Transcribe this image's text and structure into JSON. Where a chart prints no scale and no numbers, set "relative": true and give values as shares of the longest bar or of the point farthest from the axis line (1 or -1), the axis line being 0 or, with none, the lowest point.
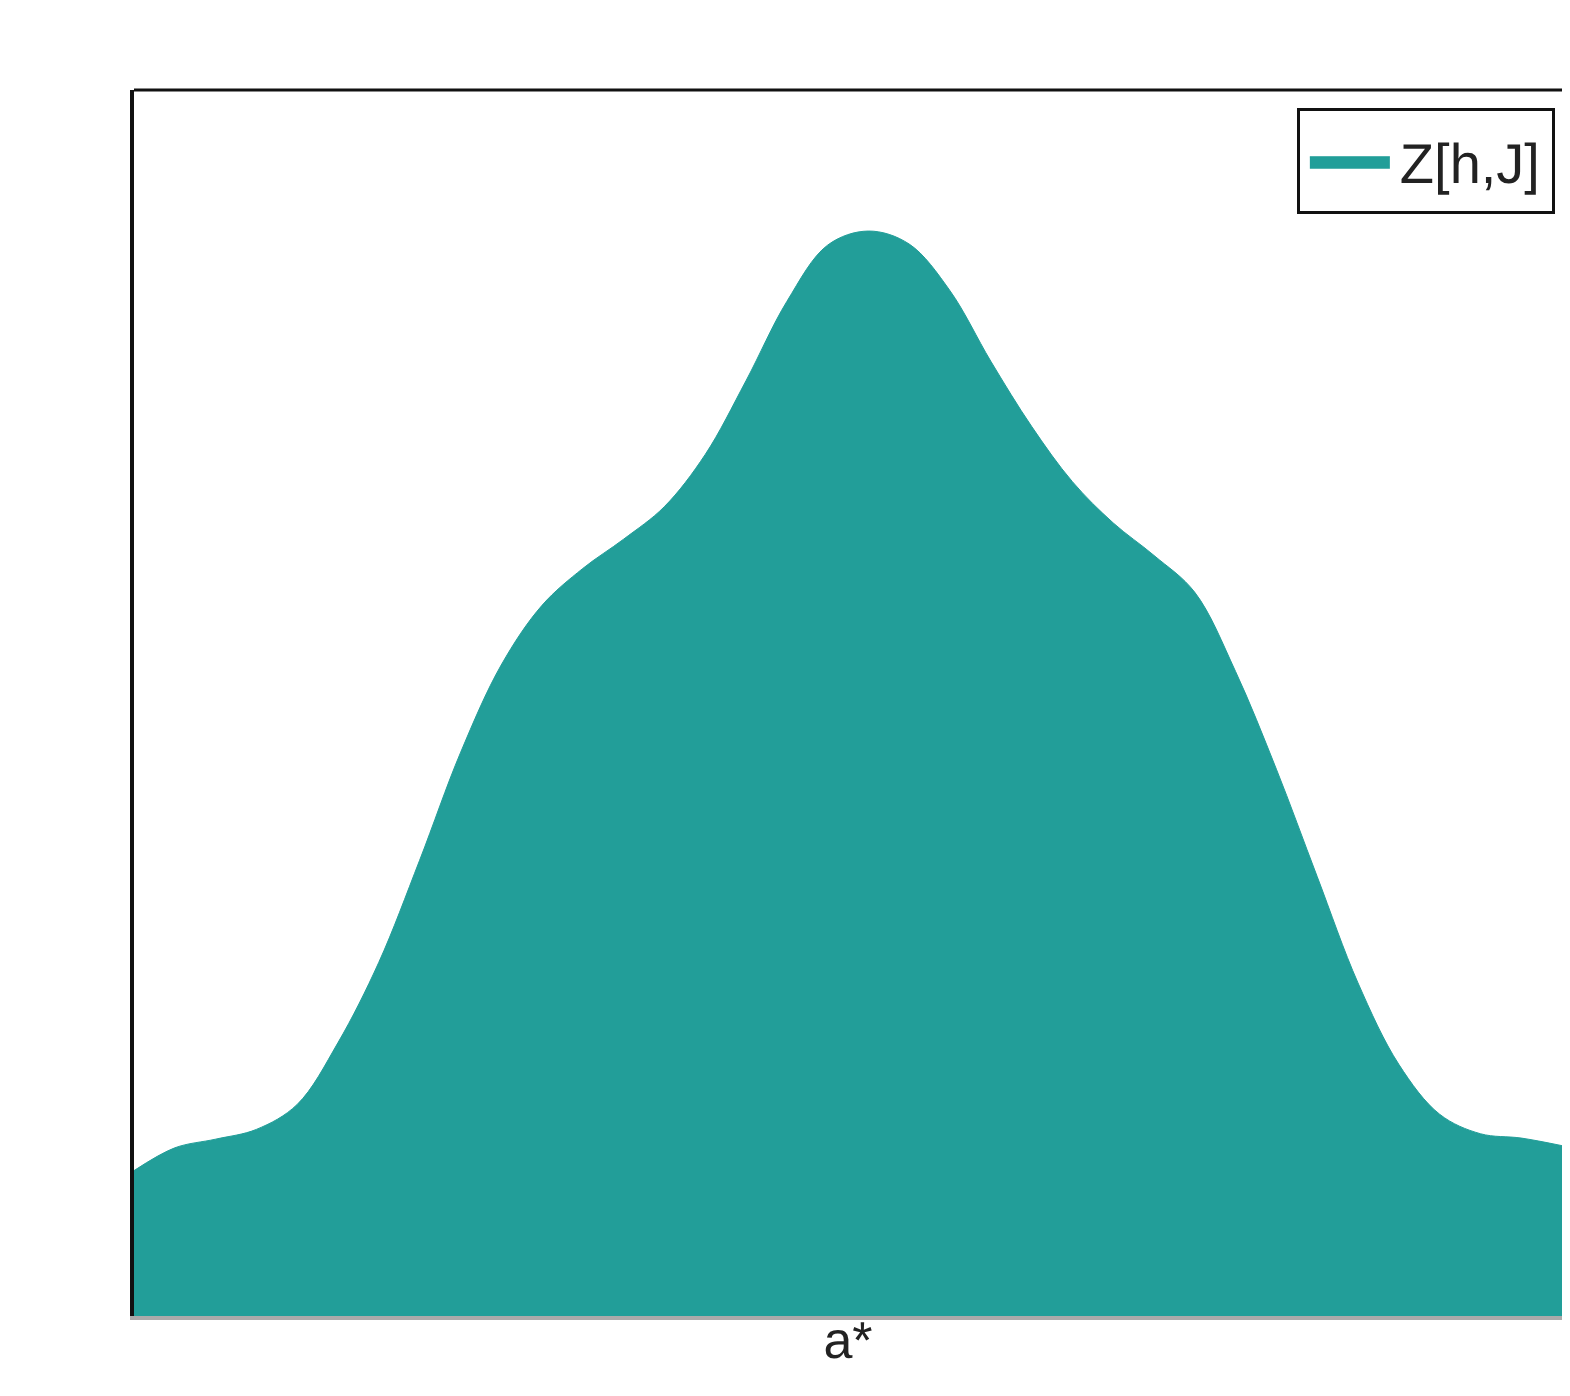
{
  "chart_data": {
    "type": "area",
    "relative": true,
    "legend": "top right",
    "xlabel": "a*",
    "categories": [
      null,
      null,
      null,
      null,
      null,
      null,
      null,
      null,
      null,
      null,
      null,
      null,
      null,
      null,
      null,
      null,
      null,
      null,
      null,
      null,
      null,
      null,
      null,
      null,
      null,
      null,
      null,
      null,
      null,
      null,
      null,
      null,
      null,
      null,
      null,
      null
    ],
    "series": [
      {
        "name": "Z[h,J]",
        "color": "#229e99",
        "values": [
          0.134,
          0.155,
          0.163,
          0.172,
          0.195,
          0.252,
          0.326,
          0.42,
          0.519,
          0.6,
          0.655,
          0.689,
          0.716,
          0.746,
          0.794,
          0.862,
          0.935,
          0.987,
          1.0,
          0.988,
          0.945,
          0.88,
          0.82,
          0.769,
          0.731,
          0.701,
          0.667,
          0.594,
          0.504,
          0.405,
          0.307,
          0.232,
          0.186,
          0.168,
          0.164,
          0.157
        ]
      }
    ]
  }
}
